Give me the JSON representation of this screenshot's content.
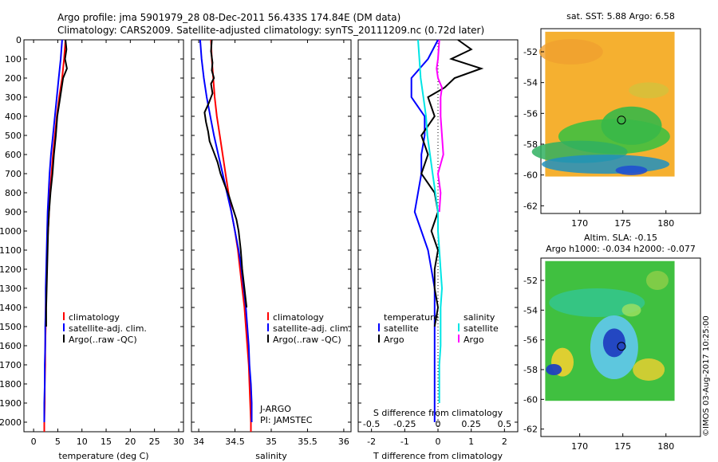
{
  "header": {
    "title_line1": "Argo profile: jma 5901979_28 08-Dec-2011 56.433S 174.84E (DM data)",
    "title_line2": "Climatology: CARS2009. Satellite-adjusted climatology: synTS_20111209.nc (0.72d later)"
  },
  "colors": {
    "climatology": "#ff0000",
    "satellite": "#0000ff",
    "argo": "#000000",
    "argo_salinity": "#ff00ff",
    "satellite_salinity": "#00e5e5"
  },
  "chart_data": [
    {
      "type": "line",
      "id": "temperature",
      "xlabel": "temperature (deg C)",
      "xlim": [
        -2,
        31
      ],
      "ylim": [
        2050,
        0
      ],
      "xticks": [
        0,
        5,
        10,
        15,
        20,
        25,
        30
      ],
      "yticks": [
        0,
        100,
        200,
        300,
        400,
        500,
        600,
        700,
        800,
        900,
        1000,
        1100,
        1200,
        1300,
        1400,
        1500,
        1600,
        1700,
        1800,
        1900,
        2000
      ],
      "legend": [
        "climatology",
        "satellite-adj. clim.",
        "Argo(..raw -QC)"
      ],
      "series": [
        {
          "name": "climatology",
          "color": "#ff0000",
          "x": [
            6.6,
            6.3,
            5.9,
            5.3,
            4.8,
            4.4,
            4.0,
            3.7,
            3.4,
            3.2,
            3.0,
            2.8,
            2.7,
            2.6,
            2.5,
            2.5,
            2.4,
            2.4,
            2.3,
            2.3,
            2.2,
            2.2
          ],
          "y": [
            0,
            100,
            200,
            300,
            400,
            500,
            600,
            700,
            800,
            900,
            1000,
            1100,
            1200,
            1300,
            1400,
            1500,
            1600,
            1700,
            1800,
            1900,
            2000,
            2050
          ]
        },
        {
          "name": "satellite-adj. clim.",
          "color": "#0000ff",
          "x": [
            5.9,
            5.6,
            5.2,
            4.8,
            4.4,
            4.0,
            3.6,
            3.3,
            3.1,
            2.9,
            2.8,
            2.7,
            2.6,
            2.5,
            2.5,
            2.4,
            2.4,
            2.3,
            2.3,
            2.2,
            2.2
          ],
          "y": [
            0,
            100,
            200,
            300,
            400,
            500,
            600,
            700,
            800,
            900,
            1000,
            1100,
            1200,
            1300,
            1400,
            1500,
            1600,
            1700,
            1800,
            1900,
            2000
          ]
        },
        {
          "name": "Argo(..raw -QC)",
          "color": "#000000",
          "x": [
            6.6,
            6.8,
            6.5,
            6.9,
            6.1,
            5.8,
            5.5,
            4.9,
            4.6,
            4.2,
            3.9,
            3.5,
            3.2,
            3.0,
            2.9,
            2.8,
            2.7,
            2.6,
            2.6
          ],
          "y": [
            0,
            50,
            100,
            150,
            200,
            250,
            300,
            400,
            500,
            600,
            700,
            800,
            900,
            1000,
            1100,
            1200,
            1300,
            1400,
            1500
          ]
        }
      ]
    },
    {
      "type": "line",
      "id": "salinity",
      "xlabel": "salinity",
      "xlim": [
        33.9,
        36.1
      ],
      "ylim": [
        2050,
        0
      ],
      "xticks": [
        34,
        34.5,
        35,
        35.5,
        36
      ],
      "legend": [
        "climatology",
        "satellite-adj. clim.",
        "Argo(..raw -QC)"
      ],
      "annotations": [
        "J-ARGO",
        "PI: JAMSTEC"
      ],
      "series": [
        {
          "name": "climatology",
          "color": "#ff0000",
          "x": [
            34.17,
            34.18,
            34.2,
            34.22,
            34.25,
            34.29,
            34.33,
            34.37,
            34.41,
            34.45,
            34.5,
            34.54,
            34.57,
            34.6,
            34.63,
            34.65,
            34.67,
            34.69,
            34.7,
            34.71,
            34.72,
            34.72
          ],
          "y": [
            0,
            100,
            200,
            300,
            400,
            500,
            600,
            700,
            800,
            900,
            1000,
            1100,
            1200,
            1300,
            1400,
            1500,
            1600,
            1700,
            1800,
            1900,
            2000,
            2050
          ]
        },
        {
          "name": "satellite-adj. clim.",
          "color": "#0000ff",
          "x": [
            34.02,
            34.04,
            34.07,
            34.11,
            34.16,
            34.21,
            34.27,
            34.33,
            34.39,
            34.45,
            34.5,
            34.55,
            34.59,
            34.62,
            34.65,
            34.67,
            34.69,
            34.7,
            34.72,
            34.73,
            34.73
          ],
          "y": [
            0,
            100,
            200,
            300,
            400,
            500,
            600,
            700,
            800,
            900,
            1000,
            1100,
            1200,
            1300,
            1400,
            1500,
            1600,
            1700,
            1800,
            1900,
            2000
          ]
        },
        {
          "name": "Argo(..raw -QC)",
          "color": "#000000",
          "x": [
            34.18,
            34.17,
            34.19,
            34.18,
            34.21,
            34.17,
            34.19,
            34.14,
            34.08,
            34.1,
            34.13,
            34.15,
            34.2,
            34.26,
            34.3,
            34.36,
            34.42,
            34.47,
            34.52,
            34.55,
            34.58,
            34.6,
            34.63,
            34.66
          ],
          "y": [
            0,
            60,
            120,
            160,
            200,
            230,
            280,
            330,
            380,
            430,
            480,
            530,
            580,
            640,
            700,
            760,
            820,
            880,
            940,
            1000,
            1100,
            1200,
            1300,
            1400
          ]
        }
      ]
    },
    {
      "type": "line",
      "id": "difference",
      "xlabel": "T difference from climatology",
      "top_label": "S difference from climatology",
      "xlim": [
        -2.4,
        2.4
      ],
      "ylim": [
        2050,
        0
      ],
      "xticks": [
        -2,
        -1,
        0,
        1,
        2
      ],
      "xticks_top": [
        -0.5,
        -0.25,
        0,
        0.25,
        0.5
      ],
      "legend_titles": [
        "temperature",
        "salinity"
      ],
      "legend": [
        "satellite",
        "Argo",
        "satellite",
        "Argo"
      ],
      "series": [
        {
          "name": "T satellite",
          "color": "#0000ff",
          "x": [
            0.0,
            -0.3,
            -0.8,
            -0.8,
            -0.4,
            -0.4,
            -0.5,
            -0.5,
            -0.6,
            -0.7,
            -0.5,
            -0.3,
            -0.2,
            -0.1,
            -0.1,
            -0.1,
            -0.1,
            -0.1,
            -0.1,
            -0.1,
            -0.1
          ],
          "y": [
            0,
            100,
            200,
            300,
            400,
            500,
            600,
            700,
            800,
            900,
            1000,
            1100,
            1200,
            1300,
            1400,
            1500,
            1600,
            1700,
            1800,
            1900,
            2000
          ]
        },
        {
          "name": "T Argo",
          "color": "#000000",
          "x": [
            0.6,
            1.0,
            0.4,
            1.3,
            0.5,
            0.2,
            -0.3,
            -0.1,
            -0.5,
            -0.3,
            -0.5,
            -0.1,
            0.0,
            -0.2,
            0.0,
            -0.1,
            -0.1,
            0.0,
            -0.1
          ],
          "y": [
            0,
            50,
            100,
            150,
            200,
            250,
            300,
            400,
            500,
            600,
            700,
            800,
            900,
            1000,
            1100,
            1200,
            1300,
            1400,
            1500
          ]
        },
        {
          "name": "S satellite",
          "color": "#00e5e5",
          "x": [
            -0.15,
            -0.14,
            -0.13,
            -0.11,
            -0.09,
            -0.08,
            -0.06,
            -0.04,
            -0.02,
            0.0,
            0.0,
            0.01,
            0.02,
            0.03,
            0.02,
            0.02,
            0.02,
            0.01,
            0.01,
            0.01
          ],
          "y": [
            0,
            100,
            200,
            300,
            400,
            500,
            600,
            700,
            800,
            900,
            1000,
            1100,
            1200,
            1300,
            1400,
            1500,
            1600,
            1700,
            1800,
            1900
          ]
        },
        {
          "name": "S Argo",
          "color": "#ff00ff",
          "x": [
            0.01,
            0.0,
            -0.01,
            0.0,
            0.03,
            0.02,
            0.02,
            0.03,
            0.04,
            0.0,
            0.02,
            0.01
          ],
          "y": [
            0,
            100,
            150,
            200,
            250,
            300,
            400,
            500,
            600,
            700,
            800,
            900
          ]
        }
      ]
    },
    {
      "type": "heatmap",
      "id": "sst_map",
      "title": "sat. SST: 5.88 Argo: 6.58",
      "xticks": [
        170,
        175,
        180
      ],
      "yticks": [
        -52,
        -54,
        -56,
        -58,
        -60,
        -62
      ],
      "xlim": [
        165.5,
        184
      ],
      "ylim": [
        -62.5,
        -50.5
      ]
    },
    {
      "type": "heatmap",
      "id": "sla_map",
      "title_line1": "Altim. SLA: -0.15",
      "title_line2": "Argo h1000: -0.034 h2000: -0.077",
      "xticks": [
        170,
        175,
        180
      ],
      "yticks": [
        -52,
        -54,
        -56,
        -58,
        -60,
        -62
      ],
      "xlim": [
        165.5,
        184
      ],
      "ylim": [
        -62.5,
        -50.5
      ]
    }
  ],
  "footer": {
    "credit": "©IMOS 03-Aug-2017 10:25:00"
  }
}
